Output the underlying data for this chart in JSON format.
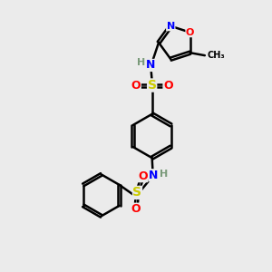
{
  "background_color": "#ebebeb",
  "bond_color": "#000000",
  "atom_colors": {
    "N": "#0000ff",
    "O": "#ff0000",
    "S": "#cccc00",
    "H": "#7a9a7a",
    "C": "#000000"
  }
}
